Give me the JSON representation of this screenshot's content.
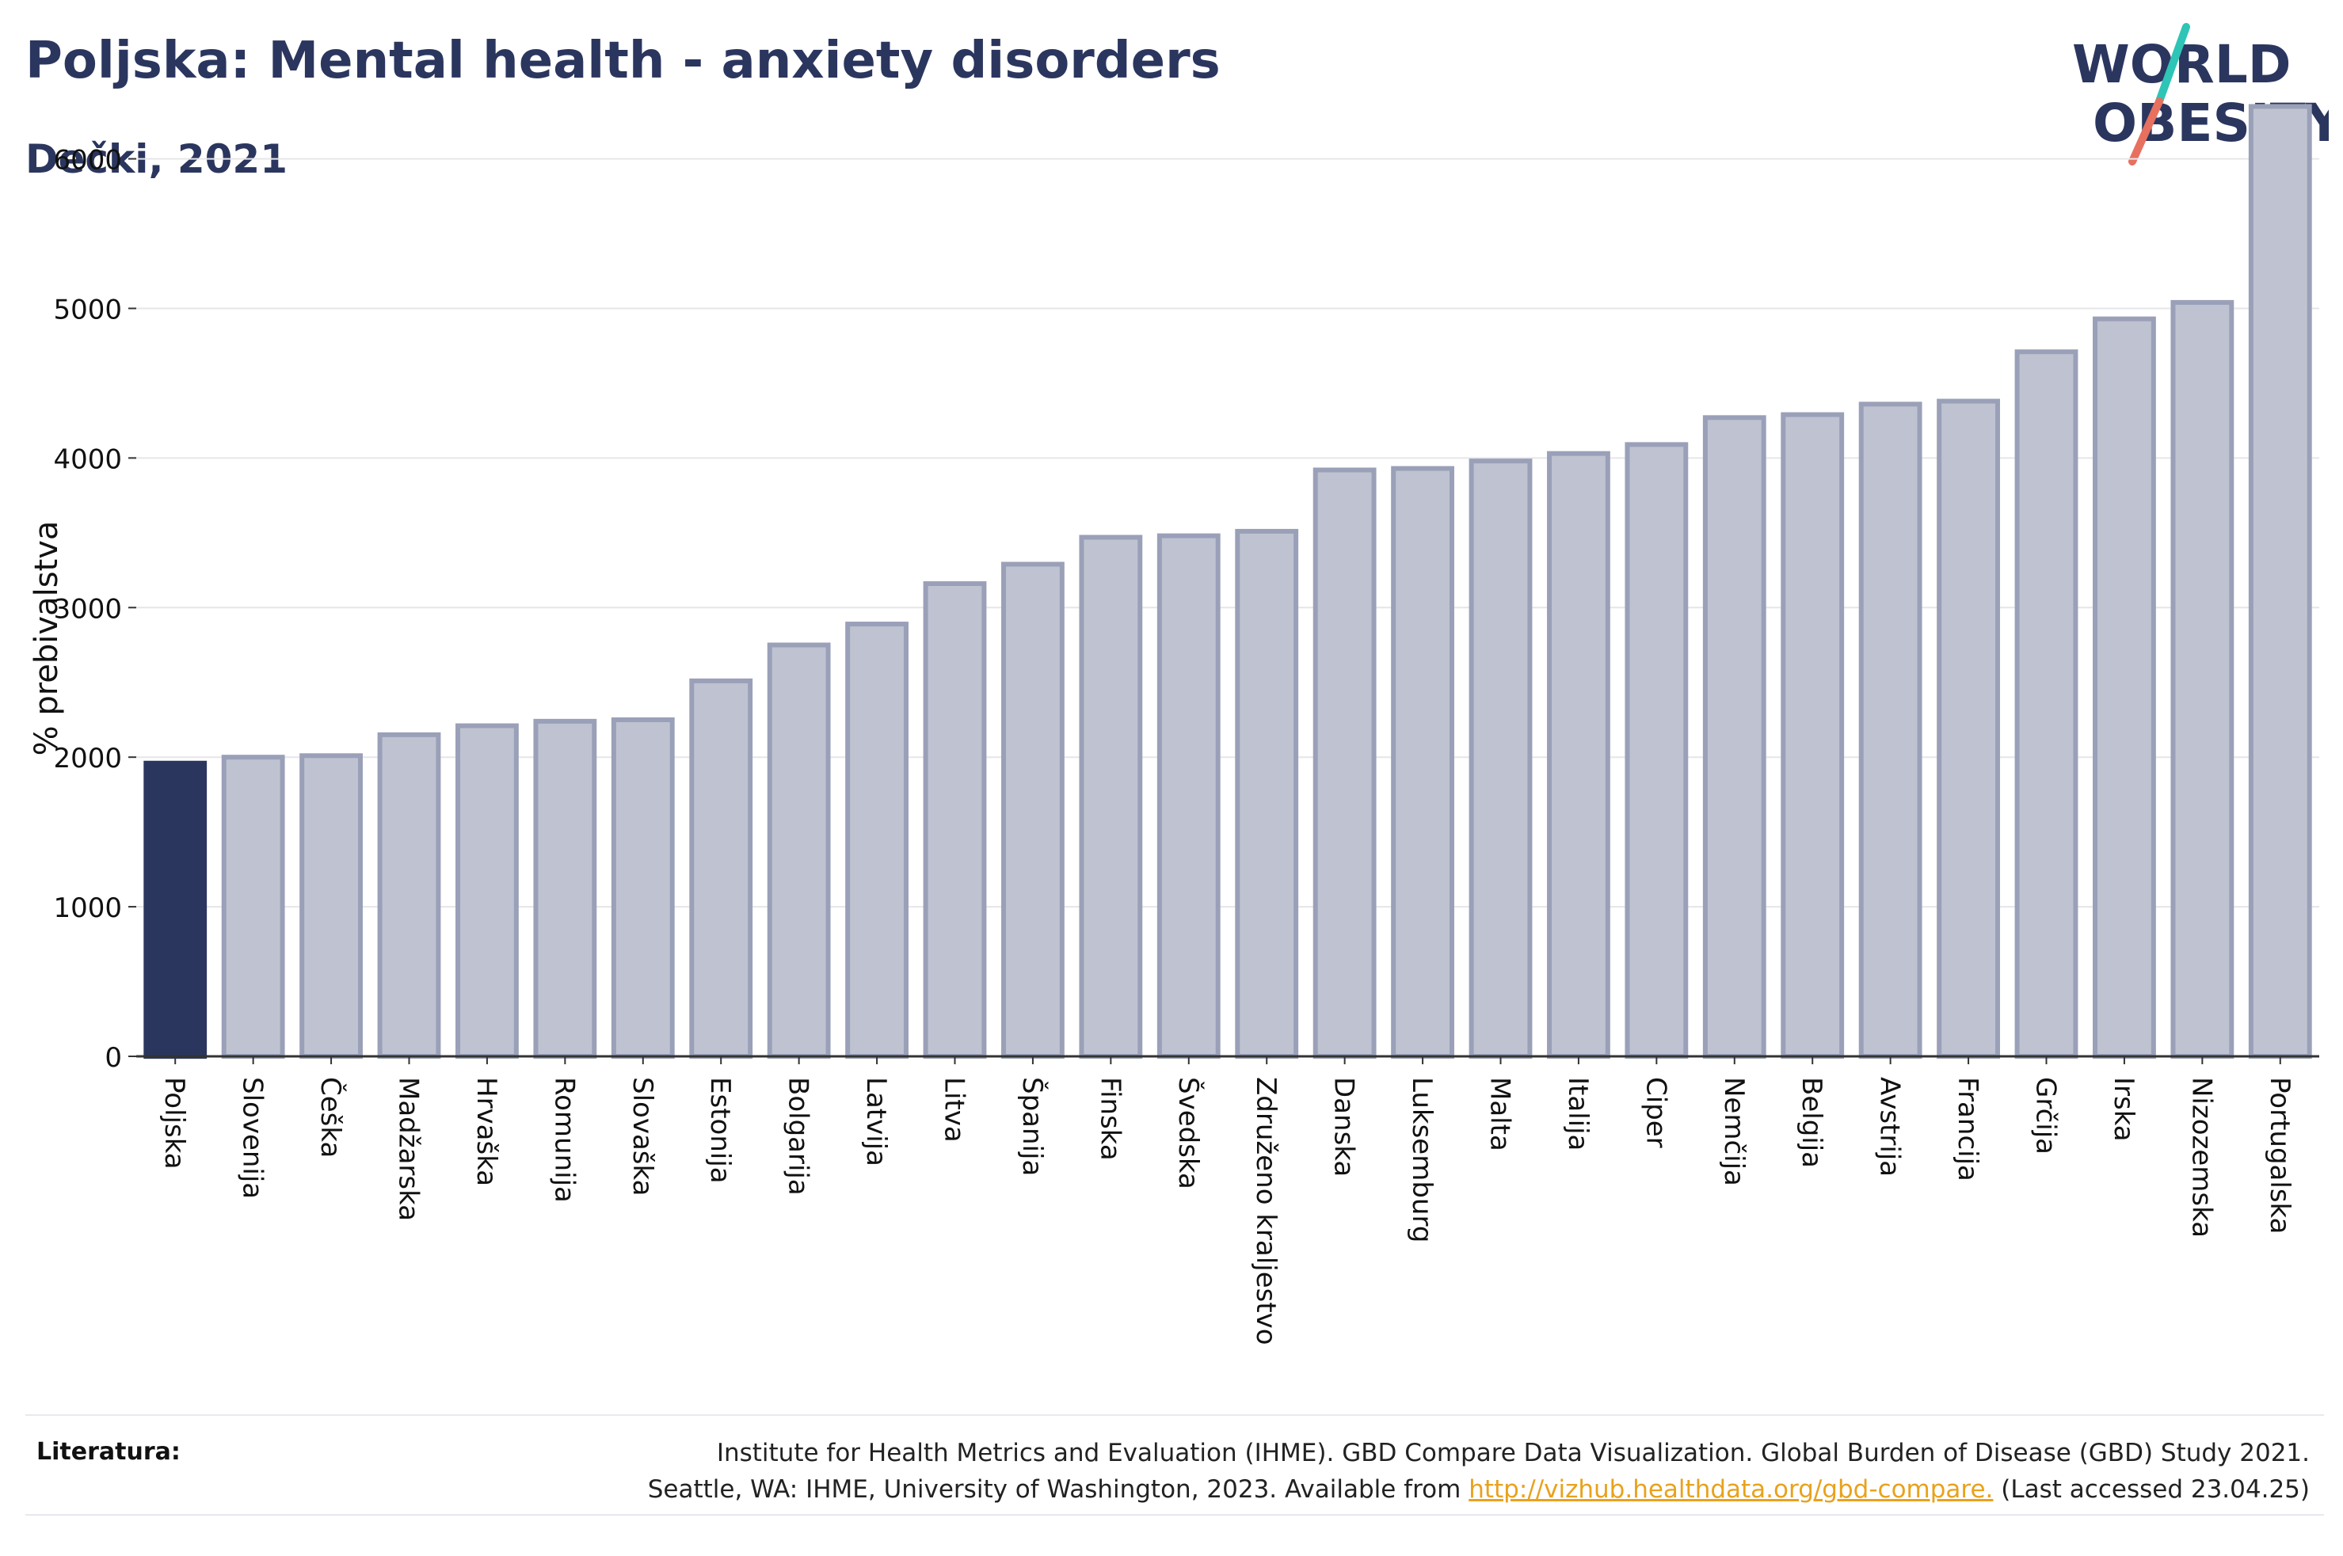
{
  "header": {
    "title": "Poljska: Mental health - anxiety disorders",
    "subtitle": "Dečki, 2021"
  },
  "logo": {
    "line1": "WORLD",
    "line2": "OBESITY"
  },
  "colors": {
    "highlight_bar": "#2b365f",
    "bar_fill": "#bfc3d1",
    "bar_stroke": "#9aa0b8",
    "title": "#2b365f",
    "link": "#e8a21c",
    "logo_teal": "#2ec4b6",
    "logo_coral": "#e8705f"
  },
  "chart_data": {
    "type": "bar",
    "ylabel": "% prebivalstva",
    "ylim": [
      0,
      6400
    ],
    "yticks": [
      0,
      1000,
      2000,
      3000,
      4000,
      5000,
      6000
    ],
    "grid": true,
    "highlight": "Poljska",
    "categories": [
      "Poljska",
      "Slovenija",
      "Češka",
      "Madžarska",
      "Hrvaška",
      "Romunija",
      "Slovaška",
      "Estonija",
      "Bolgarija",
      "Latvija",
      "Litva",
      "Španija",
      "Finska",
      "Švedska",
      "Združeno kraljestvo",
      "Danska",
      "Luksemburg",
      "Malta",
      "Italija",
      "Ciper",
      "Nemčija",
      "Belgija",
      "Avstrija",
      "Francija",
      "Grčija",
      "Irska",
      "Nizozemska",
      "Portugalska"
    ],
    "values": [
      1960,
      2000,
      2010,
      2150,
      2210,
      2240,
      2250,
      2510,
      2750,
      2890,
      3160,
      3290,
      3470,
      3480,
      3510,
      3920,
      3930,
      3980,
      4030,
      4090,
      4270,
      4290,
      4360,
      4380,
      4710,
      4930,
      5040,
      6350
    ]
  },
  "references": {
    "label": "Literatura:",
    "line1": "Institute for Health Metrics and Evaluation (IHME). GBD Compare Data Visualization. Global Burden of Disease (GBD) Study 2021.",
    "line2_prefix": "Seattle, WA: IHME, University of Washington, 2023. Available from",
    "link": "http://vizhub.healthdata.org/gbd-compare.",
    "line2_suffix": "(Last accessed 23.04.25)"
  }
}
